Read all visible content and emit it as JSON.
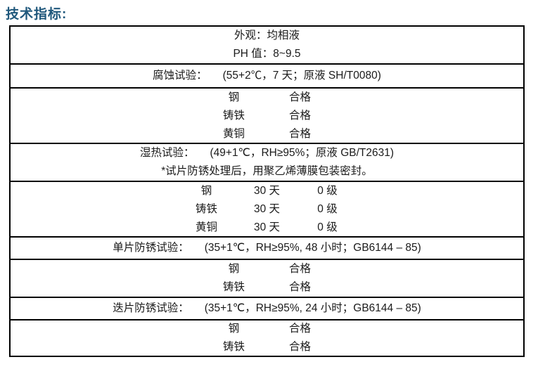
{
  "page_title": "技术指标:",
  "colors": {
    "title": "#20587c",
    "border": "#000000",
    "text": "#1b1b1b",
    "background": "#ffffff"
  },
  "table": {
    "sections": [
      {
        "rows": [
          {
            "text": "外观：均相液"
          },
          {
            "text": "PH 值：8~9.5"
          }
        ]
      },
      {
        "rows": [
          {
            "label": "腐蚀试验：",
            "value": "(55+2℃，7 天；原液  SH/T0080)"
          }
        ]
      },
      {
        "rows": [
          {
            "name": "钢",
            "result": "合格"
          },
          {
            "name": "铸铁",
            "result": "合格"
          },
          {
            "name": "黄铜",
            "result": "合格"
          }
        ]
      },
      {
        "rows": [
          {
            "label": "湿热试验：",
            "value": "(49+1℃，RH≥95%；原液  GB/T2631)"
          },
          {
            "text": "*试片防锈处理后，用聚乙烯薄膜包装密封。"
          }
        ]
      },
      {
        "rows": [
          {
            "name": "钢",
            "duration": "30 天",
            "grade": "0 级"
          },
          {
            "name": "铸铁",
            "duration": "30 天",
            "grade": "0 级"
          },
          {
            "name": "黄铜",
            "duration": "30 天",
            "grade": "0 级"
          }
        ]
      },
      {
        "rows": [
          {
            "label": "单片防锈试验：",
            "value": "(35+1℃，RH≥95%, 48 小时；GB6144 – 85)"
          }
        ]
      },
      {
        "rows": [
          {
            "name": "钢",
            "result": "合格"
          },
          {
            "name": "铸铁",
            "result": "合格"
          }
        ]
      },
      {
        "rows": [
          {
            "label": "迭片防锈试验：",
            "value": "(35+1℃，RH≥95%, 24 小时；GB6144 – 85)"
          }
        ]
      },
      {
        "rows": [
          {
            "name": "钢",
            "result": "合格"
          },
          {
            "name": "铸铁",
            "result": "合格"
          }
        ]
      }
    ]
  }
}
